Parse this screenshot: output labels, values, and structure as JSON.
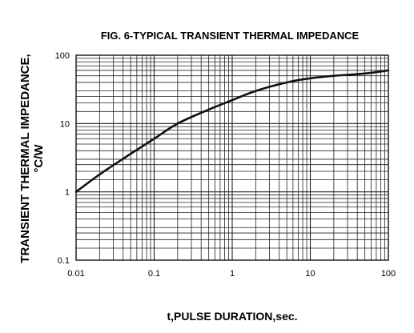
{
  "chart_data": {
    "type": "line",
    "title": "FIG. 6-TYPICAL TRANSIENT THERMAL IMPEDANCE",
    "xlabel": "t,PULSE DURATION,sec.",
    "ylabel_line1": "TRANSIENT THERMAL IMPEDANCE,",
    "ylabel_line2": "°C/W",
    "x_scale": "log",
    "y_scale": "log",
    "xlim": [
      0.01,
      100
    ],
    "ylim": [
      0.1,
      100
    ],
    "grid": true,
    "x_ticks": [
      {
        "value": 0.01,
        "label": "0.01"
      },
      {
        "value": 0.1,
        "label": "0.1"
      },
      {
        "value": 1,
        "label": "1"
      },
      {
        "value": 10,
        "label": "10"
      },
      {
        "value": 100,
        "label": "100"
      }
    ],
    "y_ticks": [
      {
        "value": 0.1,
        "label": "0.1"
      },
      {
        "value": 1,
        "label": "1"
      },
      {
        "value": 10,
        "label": "10"
      },
      {
        "value": 100,
        "label": "100"
      }
    ],
    "series": [
      {
        "x": [
          0.01,
          0.02,
          0.05,
          0.1,
          0.2,
          0.5,
          1,
          2,
          5,
          10,
          20,
          50,
          100
        ],
        "y": [
          1.0,
          1.8,
          3.6,
          6.0,
          10.0,
          16.0,
          22.0,
          30.0,
          40.0,
          46.0,
          50.0,
          54.0,
          60.0
        ]
      }
    ],
    "colors": {
      "line": "#111111",
      "grid": "#222222",
      "frame": "#000000"
    }
  }
}
